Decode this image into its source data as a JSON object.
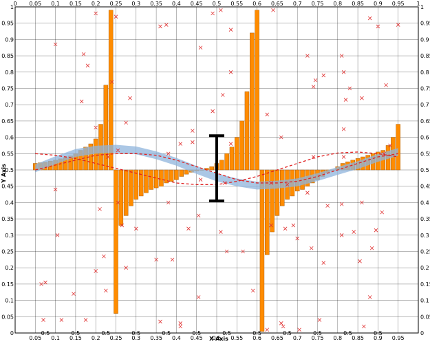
{
  "chart_data": {
    "type": "bar",
    "xlabel": "X Axis",
    "ylabel": "Y Axis",
    "xlim": [
      0,
      1
    ],
    "ylim": [
      0,
      1
    ],
    "bar_baseline": 0.5,
    "x_ticks_bottom": [
      "0.05",
      "0.1",
      "0.15",
      "0.2",
      "0.25",
      "0.3",
      "0.35",
      "0.4",
      "0.45",
      "0.5",
      "0.55",
      "0.6",
      "0.65",
      "0.7",
      "0.75",
      "0.8",
      "0.85",
      "0.9",
      "0.95"
    ],
    "x_ticks_top": [
      "0",
      "0.05",
      "0.1",
      "0.15",
      "0.2",
      "0.25",
      "0.3",
      "0.35",
      "0.4",
      "0.45",
      "0.5",
      "0.55",
      "0.6",
      "0.65",
      "0.7",
      "0.75",
      "0.8",
      "0.85",
      "0.9",
      "0.95",
      "1"
    ],
    "x_ticks_minor_bottom": [
      "0.5",
      "0.5",
      "0.5",
      "0.5",
      "0.5",
      "0.5",
      "0.5",
      "0.5",
      "0.5",
      "0.5",
      "0.5",
      "0.5"
    ],
    "y_ticks_left": [
      "0",
      "0.05",
      "0.1",
      "0.15",
      "0.2",
      "0.25",
      "0.3",
      "0.35",
      "0.4",
      "0.45",
      "0.5",
      "0.55",
      "0.6",
      "0.65",
      "0.7",
      "0.75",
      "0.8",
      "0.85",
      "0.9",
      "0.95",
      "1"
    ],
    "y_ticks_right": [
      "0",
      "0.05",
      "0.1",
      "0.15",
      "0.2",
      "0.25",
      "0.3",
      "0.35",
      "0.4",
      "0.45",
      "0.5",
      "0.55",
      "0.6",
      "0.65",
      "0.7",
      "0.75",
      "0.8",
      "0.85",
      "0.9",
      "0.95",
      "1"
    ],
    "grid": true,
    "colors": {
      "bars": "#ff8c00",
      "band": "#8fb4dc",
      "markers": "#e03030",
      "dashed": "#e02020",
      "errorbar": "#000000",
      "grid": "#000000"
    },
    "bars": {
      "x": [
        0.05,
        0.0625,
        0.075,
        0.0875,
        0.1,
        0.1125,
        0.125,
        0.1375,
        0.15,
        0.1625,
        0.175,
        0.1875,
        0.2,
        0.2125,
        0.225,
        0.2375,
        0.25,
        0.2625,
        0.275,
        0.2875,
        0.3,
        0.3125,
        0.325,
        0.3375,
        0.35,
        0.3625,
        0.375,
        0.3875,
        0.4,
        0.4125,
        0.425,
        0.4375,
        0.45,
        0.4625,
        0.475,
        0.4875,
        0.5,
        0.5125,
        0.525,
        0.5375,
        0.55,
        0.5625,
        0.575,
        0.5875,
        0.6,
        0.6125,
        0.625,
        0.6375,
        0.65,
        0.6625,
        0.675,
        0.6875,
        0.7,
        0.7125,
        0.725,
        0.7375,
        0.75,
        0.7625,
        0.775,
        0.7875,
        0.8,
        0.8125,
        0.825,
        0.8375,
        0.85,
        0.8625,
        0.875,
        0.8875,
        0.9,
        0.9125,
        0.925,
        0.9375,
        0.95
      ],
      "y": [
        0.52,
        0.522,
        0.524,
        0.527,
        0.53,
        0.534,
        0.538,
        0.543,
        0.55,
        0.56,
        0.57,
        0.58,
        0.595,
        0.64,
        0.76,
        0.99,
        0.06,
        0.33,
        0.36,
        0.39,
        0.41,
        0.42,
        0.43,
        0.44,
        0.445,
        0.45,
        0.46,
        0.465,
        0.47,
        0.48,
        0.487,
        0.493,
        0.497,
        0.5,
        0.505,
        0.51,
        0.52,
        0.53,
        0.55,
        0.57,
        0.6,
        0.65,
        0.74,
        0.92,
        0.99,
        0.005,
        0.24,
        0.31,
        0.36,
        0.39,
        0.41,
        0.42,
        0.435,
        0.44,
        0.45,
        0.46,
        0.47,
        0.48,
        0.49,
        0.5,
        0.51,
        0.52,
        0.525,
        0.53,
        0.535,
        0.54,
        0.545,
        0.55,
        0.555,
        0.56,
        0.575,
        0.6,
        0.64
      ]
    },
    "band": {
      "x": [
        0.05,
        0.1,
        0.15,
        0.2,
        0.25,
        0.3,
        0.35,
        0.4,
        0.45,
        0.5,
        0.55,
        0.6,
        0.65,
        0.7,
        0.75,
        0.8,
        0.85,
        0.9,
        0.95
      ],
      "center": [
        0.505,
        0.53,
        0.552,
        0.562,
        0.565,
        0.56,
        0.545,
        0.525,
        0.5,
        0.477,
        0.462,
        0.452,
        0.455,
        0.462,
        0.478,
        0.497,
        0.515,
        0.537,
        0.555
      ],
      "half_width": [
        0.012,
        0.012,
        0.012,
        0.012,
        0.012,
        0.012,
        0.012,
        0.012,
        0.012,
        0.012,
        0.012,
        0.012,
        0.012,
        0.012,
        0.012,
        0.012,
        0.012,
        0.012,
        0.012
      ]
    },
    "dashed_lines": [
      {
        "x": [
          0.05,
          0.1,
          0.15,
          0.2,
          0.25,
          0.3,
          0.35,
          0.4,
          0.45,
          0.5,
          0.55,
          0.6,
          0.65,
          0.7,
          0.75,
          0.8,
          0.85,
          0.9,
          0.95
        ],
        "y": [
          0.55,
          0.545,
          0.535,
          0.52,
          0.505,
          0.49,
          0.475,
          0.46,
          0.455,
          0.455,
          0.465,
          0.48,
          0.5,
          0.52,
          0.54,
          0.552,
          0.555,
          0.55,
          0.54
        ]
      },
      {
        "x": [
          0.05,
          0.1,
          0.15,
          0.2,
          0.25,
          0.3,
          0.35,
          0.4,
          0.45,
          0.5,
          0.55,
          0.6,
          0.65,
          0.7,
          0.75,
          0.8,
          0.85,
          0.9,
          0.95
        ],
        "y": [
          0.5,
          0.515,
          0.53,
          0.545,
          0.55,
          0.55,
          0.545,
          0.53,
          0.51,
          0.49,
          0.47,
          0.46,
          0.46,
          0.465,
          0.48,
          0.5,
          0.52,
          0.54,
          0.55
        ]
      }
    ],
    "errorbar": {
      "x": 0.5,
      "low": 0.405,
      "high": 0.605
    },
    "scatter_markers": {
      "x": [
        0.2,
        0.25,
        0.275,
        0.46,
        0.51,
        0.535,
        0.64,
        0.88,
        0.9,
        0.95,
        0.1,
        0.17,
        0.18,
        0.24,
        0.36,
        0.375,
        0.49,
        0.49,
        0.625,
        0.765,
        0.815,
        0.92,
        0.83,
        0.74,
        0.81,
        0.66,
        0.725,
        0.535,
        0.44,
        0.515,
        0.285,
        0.815,
        0.165,
        0.815,
        0.74,
        0.82,
        0.745,
        0.86,
        0.2,
        0.44,
        0.915,
        0.535,
        0.255,
        0.93,
        0.23,
        0.41,
        0.38,
        0.255,
        0.46,
        0.52,
        0.635,
        0.675,
        0.81,
        0.91,
        0.86,
        0.725,
        0.775,
        0.1,
        0.21,
        0.38,
        0.265,
        0.51,
        0.69,
        0.105,
        0.895,
        0.635,
        0.67,
        0.455,
        0.43,
        0.3,
        0.7,
        0.735,
        0.81,
        0.84,
        0.525,
        0.765,
        0.22,
        0.885,
        0.275,
        0.2,
        0.39,
        0.855,
        0.35,
        0.565,
        0.145,
        0.065,
        0.075,
        0.225,
        0.455,
        0.59,
        0.88,
        0.175,
        0.115,
        0.07,
        0.36,
        0.41,
        0.66,
        0.755,
        0.625,
        0.41,
        0.665,
        0.705,
        0.865
      ],
      "y": [
        0.98,
        0.97,
        0.645,
        0.875,
        0.99,
        0.93,
        0.99,
        0.965,
        0.94,
        0.945,
        0.885,
        0.855,
        0.82,
        0.77,
        0.94,
        0.945,
        0.98,
        0.68,
        0.67,
        0.79,
        0.8,
        0.76,
        0.75,
        0.755,
        0.85,
        0.6,
        0.85,
        0.8,
        0.62,
        0.73,
        0.72,
        0.625,
        0.71,
        0.54,
        0.54,
        0.715,
        0.775,
        0.72,
        0.63,
        0.585,
        0.55,
        0.58,
        0.56,
        0.575,
        0.54,
        0.58,
        0.55,
        0.4,
        0.47,
        0.46,
        0.46,
        0.455,
        0.395,
        0.37,
        0.4,
        0.43,
        0.39,
        0.44,
        0.38,
        0.4,
        0.33,
        0.31,
        0.33,
        0.3,
        0.315,
        0.33,
        0.32,
        0.36,
        0.32,
        0.32,
        0.29,
        0.26,
        0.3,
        0.31,
        0.25,
        0.215,
        0.235,
        0.26,
        0.2,
        0.19,
        0.225,
        0.22,
        0.225,
        0.25,
        0.12,
        0.15,
        0.155,
        0.13,
        0.11,
        0.13,
        0.11,
        0.04,
        0.04,
        0.04,
        0.035,
        0.03,
        0.03,
        0.04,
        0.01,
        0.02,
        0.02,
        0.01,
        0.02
      ]
    }
  }
}
